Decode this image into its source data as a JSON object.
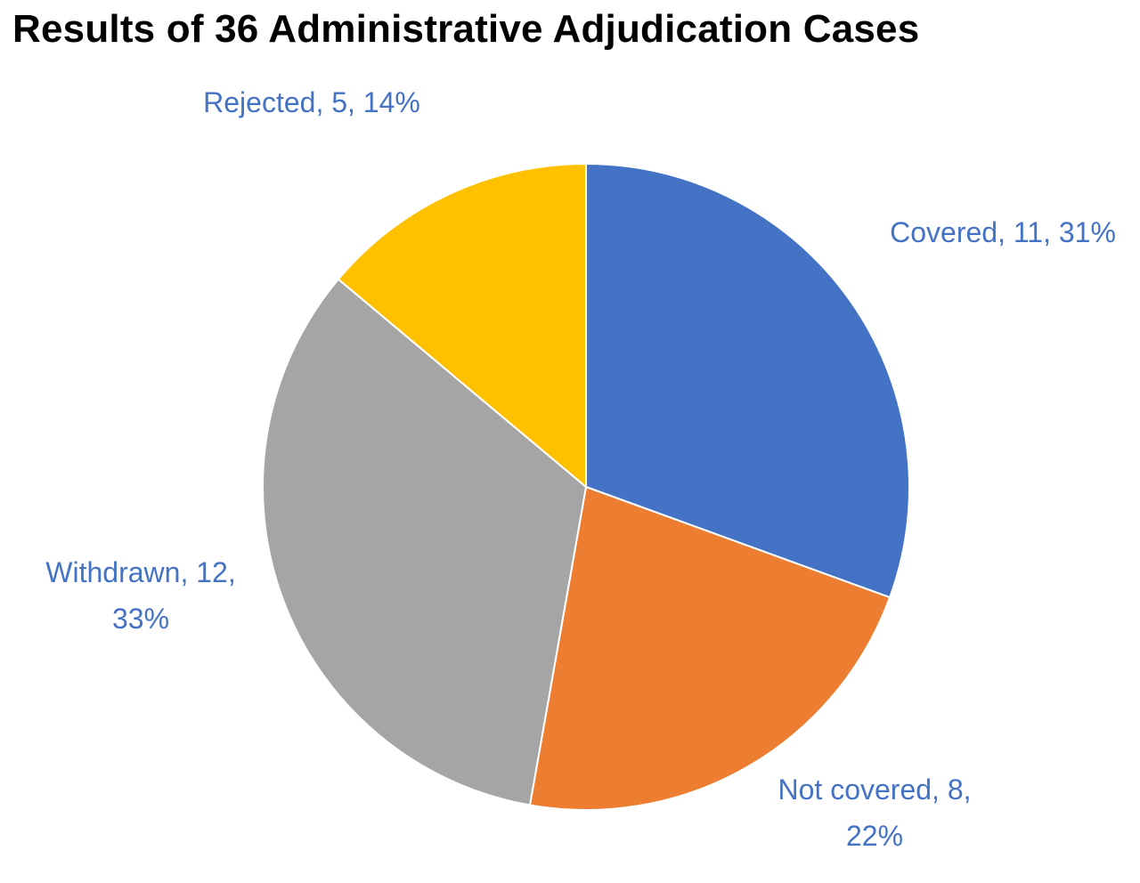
{
  "chart_data": {
    "type": "pie",
    "title": "Results of 36 Administrative Adjudication Cases",
    "start_angle_deg": 0,
    "direction": "clockwise",
    "label_color": "#4472C4",
    "slices": [
      {
        "name": "Covered",
        "value": 11,
        "percent": "31%",
        "color": "#4472C4",
        "label_lines": [
          "Covered, 11, 31%"
        ]
      },
      {
        "name": "Not covered",
        "value": 8,
        "percent": "22%",
        "color": "#ED7D31",
        "label_lines": [
          "Not covered, 8,",
          "22%"
        ]
      },
      {
        "name": "Withdrawn",
        "value": 12,
        "percent": "33%",
        "color": "#A5A5A5",
        "label_lines": [
          "Withdrawn, 12,",
          "33%"
        ]
      },
      {
        "name": "Rejected",
        "value": 5,
        "percent": "14%",
        "color": "#FFC000",
        "label_lines": [
          "Rejected, 5, 14%"
        ]
      }
    ]
  }
}
